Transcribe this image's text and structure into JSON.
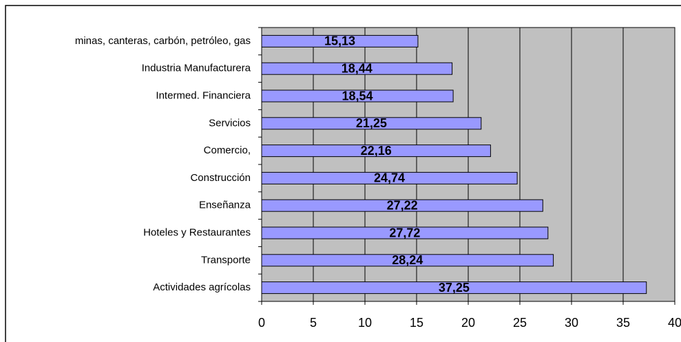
{
  "chart_data": {
    "type": "bar",
    "orientation": "horizontal",
    "categories": [
      "minas, canteras, carbón, petróleo, gas",
      "Industria Manufacturera",
      "Intermed. Financiera",
      "Servicios",
      "Comercio,",
      "Construcción",
      "Enseñanza",
      "Hoteles y Restaurantes",
      "Transporte",
      "Actividades agrícolas"
    ],
    "values": [
      15.13,
      18.44,
      18.54,
      21.25,
      22.16,
      24.74,
      27.22,
      27.72,
      28.24,
      37.25
    ],
    "value_labels": [
      "15,13",
      "18,44",
      "18,54",
      "21,25",
      "22,16",
      "24,74",
      "27,22",
      "27,72",
      "28,24",
      "37,25"
    ],
    "color": "#9999ff",
    "xlim": [
      0,
      40
    ],
    "xticks": [
      0,
      5,
      10,
      15,
      20,
      25,
      30,
      35,
      40
    ],
    "grid": true
  }
}
